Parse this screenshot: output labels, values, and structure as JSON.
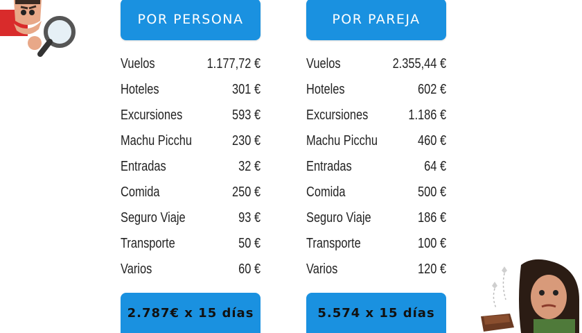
{
  "per_person": {
    "title": "POR PERSONA",
    "items": [
      {
        "label": "Vuelos",
        "value": "1.177,72 €"
      },
      {
        "label": "Hoteles",
        "value": "301 €"
      },
      {
        "label": "Excursiones",
        "value": "593 €"
      },
      {
        "label": "Machu Picchu",
        "value": "230 €"
      },
      {
        "label": "Entradas",
        "value": "32 €"
      },
      {
        "label": "Comida",
        "value": "250 €"
      },
      {
        "label": "Seguro Viaje",
        "value": "93 €"
      },
      {
        "label": "Transporte",
        "value": "50 €"
      },
      {
        "label": "Varios",
        "value": "60 €"
      }
    ],
    "total": "2.787€ x 15 días"
  },
  "per_couple": {
    "title": "POR PAREJA",
    "items": [
      {
        "label": "Vuelos",
        "value": "2.355,44 €"
      },
      {
        "label": "Hoteles",
        "value": "602 €"
      },
      {
        "label": "Excursiones",
        "value": "1.186 €"
      },
      {
        "label": "Machu Picchu",
        "value": "460 €"
      },
      {
        "label": "Entradas",
        "value": "64 €"
      },
      {
        "label": "Comida",
        "value": "500 €"
      },
      {
        "label": "Seguro Viaje",
        "value": "186 €"
      },
      {
        "label": "Transporte",
        "value": "100 €"
      },
      {
        "label": "Varios",
        "value": "120 €"
      }
    ],
    "total": "5.574 x 15 días"
  },
  "colors": {
    "accent": "#1a91e0",
    "text": "#222222"
  },
  "icons": {
    "top_left": "magnifying-glass-avatar",
    "bottom_right": "empty-wallet-avatar"
  }
}
